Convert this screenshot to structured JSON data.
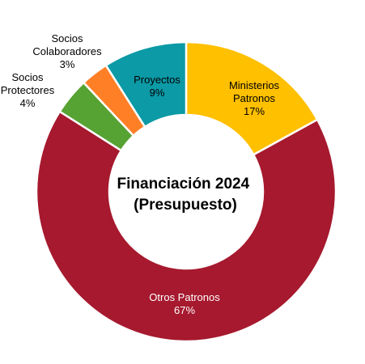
{
  "chart_data": {
    "type": "pie",
    "variant": "donut",
    "title": [
      "Financiación 2024",
      "(Presupuesto)"
    ],
    "legend": "none",
    "slices": [
      {
        "label": [
          "Ministerios",
          "Patronos"
        ],
        "value": 17,
        "percent_label": "17%",
        "color": "#FFC000"
      },
      {
        "label": [
          "Otros Patronos"
        ],
        "value": 67,
        "percent_label": "67%",
        "color": "#A6192E"
      },
      {
        "label": [
          "Socios",
          "Protectores"
        ],
        "value": 4,
        "percent_label": "4%",
        "color": "#56A232"
      },
      {
        "label": [
          "Socios",
          "Colaboradores"
        ],
        "value": 3,
        "percent_label": "3%",
        "color": "#FF7F27"
      },
      {
        "label": [
          "Proyectos"
        ],
        "value": 9,
        "percent_label": "9%",
        "color": "#0B9AA6"
      }
    ]
  }
}
